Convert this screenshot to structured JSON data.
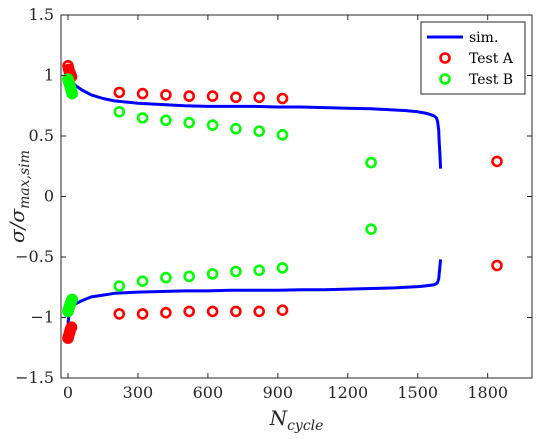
{
  "chart_data": {
    "type": "scatter",
    "title": "",
    "xlabel": {
      "base": "N",
      "sub": "cycle"
    },
    "ylabel": {
      "base": "σ/σ",
      "sub": "max,sim"
    },
    "xlim": [
      -30,
      1990
    ],
    "ylim": [
      -1.5,
      1.5
    ],
    "xticks": [
      0,
      300,
      600,
      900,
      1200,
      1500,
      1800
    ],
    "yticks": [
      -1.5,
      -1,
      -0.5,
      0,
      0.5,
      1,
      1.5
    ],
    "xtick_labels": [
      "0",
      "300",
      "600",
      "900",
      "1200",
      "1500",
      "1800"
    ],
    "ytick_labels": [
      "−1.5",
      "−1",
      "−0.5",
      "0",
      "0.5",
      "1",
      "1.5"
    ],
    "grid": false,
    "legend_position": "top-right",
    "series": [
      {
        "name": "sim.",
        "kind": "line",
        "color": "#0000ff",
        "upper": {
          "x": [
            0,
            3,
            8,
            15,
            30,
            60,
            100,
            150,
            200,
            300,
            400,
            500,
            600,
            700,
            800,
            900,
            1000,
            1100,
            1200,
            1300,
            1400,
            1450,
            1500,
            1530,
            1550,
            1570,
            1580,
            1585,
            1590,
            1592,
            1595,
            1598
          ],
          "y": [
            1.08,
            1.03,
            0.99,
            0.96,
            0.92,
            0.88,
            0.84,
            0.81,
            0.79,
            0.77,
            0.76,
            0.75,
            0.745,
            0.745,
            0.745,
            0.74,
            0.74,
            0.735,
            0.73,
            0.725,
            0.715,
            0.71,
            0.7,
            0.69,
            0.68,
            0.665,
            0.65,
            0.62,
            0.55,
            0.45,
            0.35,
            0.23
          ]
        },
        "lower": {
          "x": [
            0,
            3,
            8,
            15,
            30,
            60,
            100,
            150,
            200,
            300,
            400,
            500,
            600,
            700,
            800,
            900,
            1000,
            1100,
            1200,
            1300,
            1400,
            1450,
            1500,
            1530,
            1550,
            1570,
            1580,
            1585,
            1590,
            1592,
            1595,
            1598
          ],
          "y": [
            -1.05,
            -1.0,
            -0.96,
            -0.93,
            -0.89,
            -0.86,
            -0.83,
            -0.815,
            -0.8,
            -0.79,
            -0.785,
            -0.78,
            -0.78,
            -0.775,
            -0.775,
            -0.775,
            -0.77,
            -0.77,
            -0.765,
            -0.76,
            -0.755,
            -0.75,
            -0.745,
            -0.74,
            -0.735,
            -0.73,
            -0.72,
            -0.71,
            -0.68,
            -0.64,
            -0.58,
            -0.52
          ]
        }
      },
      {
        "name": "Test A",
        "kind": "marker",
        "color": "#ff0000",
        "x": [
          0,
          3,
          6,
          9,
          12,
          15,
          220,
          320,
          420,
          520,
          620,
          720,
          820,
          920,
          1840,
          1840,
          0,
          3,
          6,
          9,
          12,
          15,
          220,
          320,
          420,
          520,
          620,
          720,
          820,
          920
        ],
        "y": [
          1.08,
          1.05,
          1.03,
          1.02,
          1.0,
          0.99,
          0.86,
          0.85,
          0.84,
          0.83,
          0.83,
          0.82,
          0.82,
          0.81,
          0.29,
          -0.57,
          -1.17,
          -1.15,
          -1.13,
          -1.11,
          -1.09,
          -1.08,
          -0.97,
          -0.97,
          -0.96,
          -0.95,
          -0.95,
          -0.95,
          -0.95,
          -0.94
        ]
      },
      {
        "name": "Test B",
        "kind": "marker",
        "color": "#00ff00",
        "x": [
          0,
          3,
          6,
          9,
          12,
          15,
          18,
          220,
          320,
          420,
          520,
          620,
          720,
          820,
          920,
          1300,
          1300,
          0,
          3,
          6,
          9,
          12,
          15,
          18,
          220,
          320,
          420,
          520,
          620,
          720,
          820,
          920
        ],
        "y": [
          0.97,
          0.95,
          0.93,
          0.91,
          0.89,
          0.87,
          0.85,
          0.7,
          0.65,
          0.63,
          0.61,
          0.59,
          0.56,
          0.54,
          0.51,
          0.28,
          -0.27,
          -0.95,
          -0.93,
          -0.91,
          -0.89,
          -0.88,
          -0.86,
          -0.85,
          -0.74,
          -0.7,
          -0.67,
          -0.66,
          -0.64,
          -0.62,
          -0.61,
          -0.59
        ]
      }
    ]
  }
}
